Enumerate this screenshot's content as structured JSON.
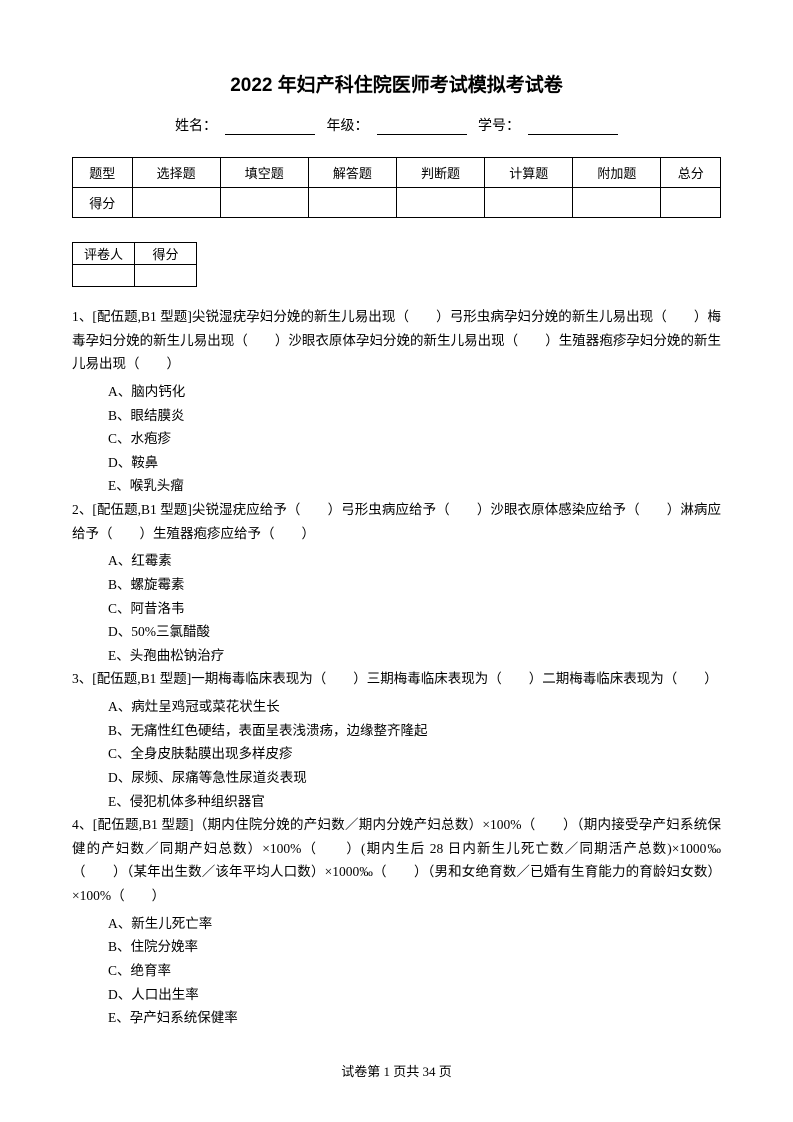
{
  "title": "2022 年妇产科住院医师考试模拟考试卷",
  "info": {
    "name_label": "姓名：",
    "grade_label": "年级：",
    "id_label": "学号："
  },
  "score_table": {
    "headers": [
      "题型",
      "选择题",
      "填空题",
      "解答题",
      "判断题",
      "计算题",
      "附加题",
      "总分"
    ],
    "row_label": "得分"
  },
  "reviewer_table": {
    "col1": "评卷人",
    "col2": "得分"
  },
  "questions": [
    {
      "text": "1、[配伍题,B1 型题]尖锐湿疣孕妇分娩的新生儿易出现（　　）弓形虫病孕妇分娩的新生儿易出现（　　）梅毒孕妇分娩的新生儿易出现（　　）沙眼衣原体孕妇分娩的新生儿易出现（　　）生殖器疱疹孕妇分娩的新生儿易出现（　　）",
      "options": [
        "A、脑内钙化",
        "B、眼结膜炎",
        "C、水疱疹",
        "D、鞍鼻",
        "E、喉乳头瘤"
      ]
    },
    {
      "text": "2、[配伍题,B1 型题]尖锐湿疣应给予（　　）弓形虫病应给予（　　）沙眼衣原体感染应给予（　　）淋病应给予（　　）生殖器疱疹应给予（　　）",
      "options": [
        "A、红霉素",
        "B、螺旋霉素",
        "C、阿昔洛韦",
        "D、50%三氯醋酸",
        "E、头孢曲松钠治疗"
      ]
    },
    {
      "text": "3、[配伍题,B1 型题]一期梅毒临床表现为（　　）三期梅毒临床表现为（　　）二期梅毒临床表现为（　　）",
      "options": [
        "A、病灶呈鸡冠或菜花状生长",
        "B、无痛性红色硬结，表面呈表浅溃疡，边缘整齐隆起",
        "C、全身皮肤黏膜出现多样皮疹",
        "D、尿频、尿痛等急性尿道炎表现",
        "E、侵犯机体多种组织器官"
      ]
    },
    {
      "text": "4、[配伍题,B1 型题]（期内住院分娩的产妇数／期内分娩产妇总数）×100%（　　）（期内接受孕产妇系统保健的产妇数／同期产妇总数）×100%（　　）(期内生后 28 日内新生儿死亡数／同期活产总数)×1000‰（　　）（某年出生数／该年平均人口数）×1000‰（　　）（男和女绝育数／已婚有生育能力的育龄妇女数）×100%（　　）",
      "options": [
        "A、新生儿死亡率",
        "B、住院分娩率",
        "C、绝育率",
        "D、人口出生率",
        "E、孕产妇系统保健率"
      ]
    }
  ],
  "footer": "试卷第 1 页共 34 页"
}
